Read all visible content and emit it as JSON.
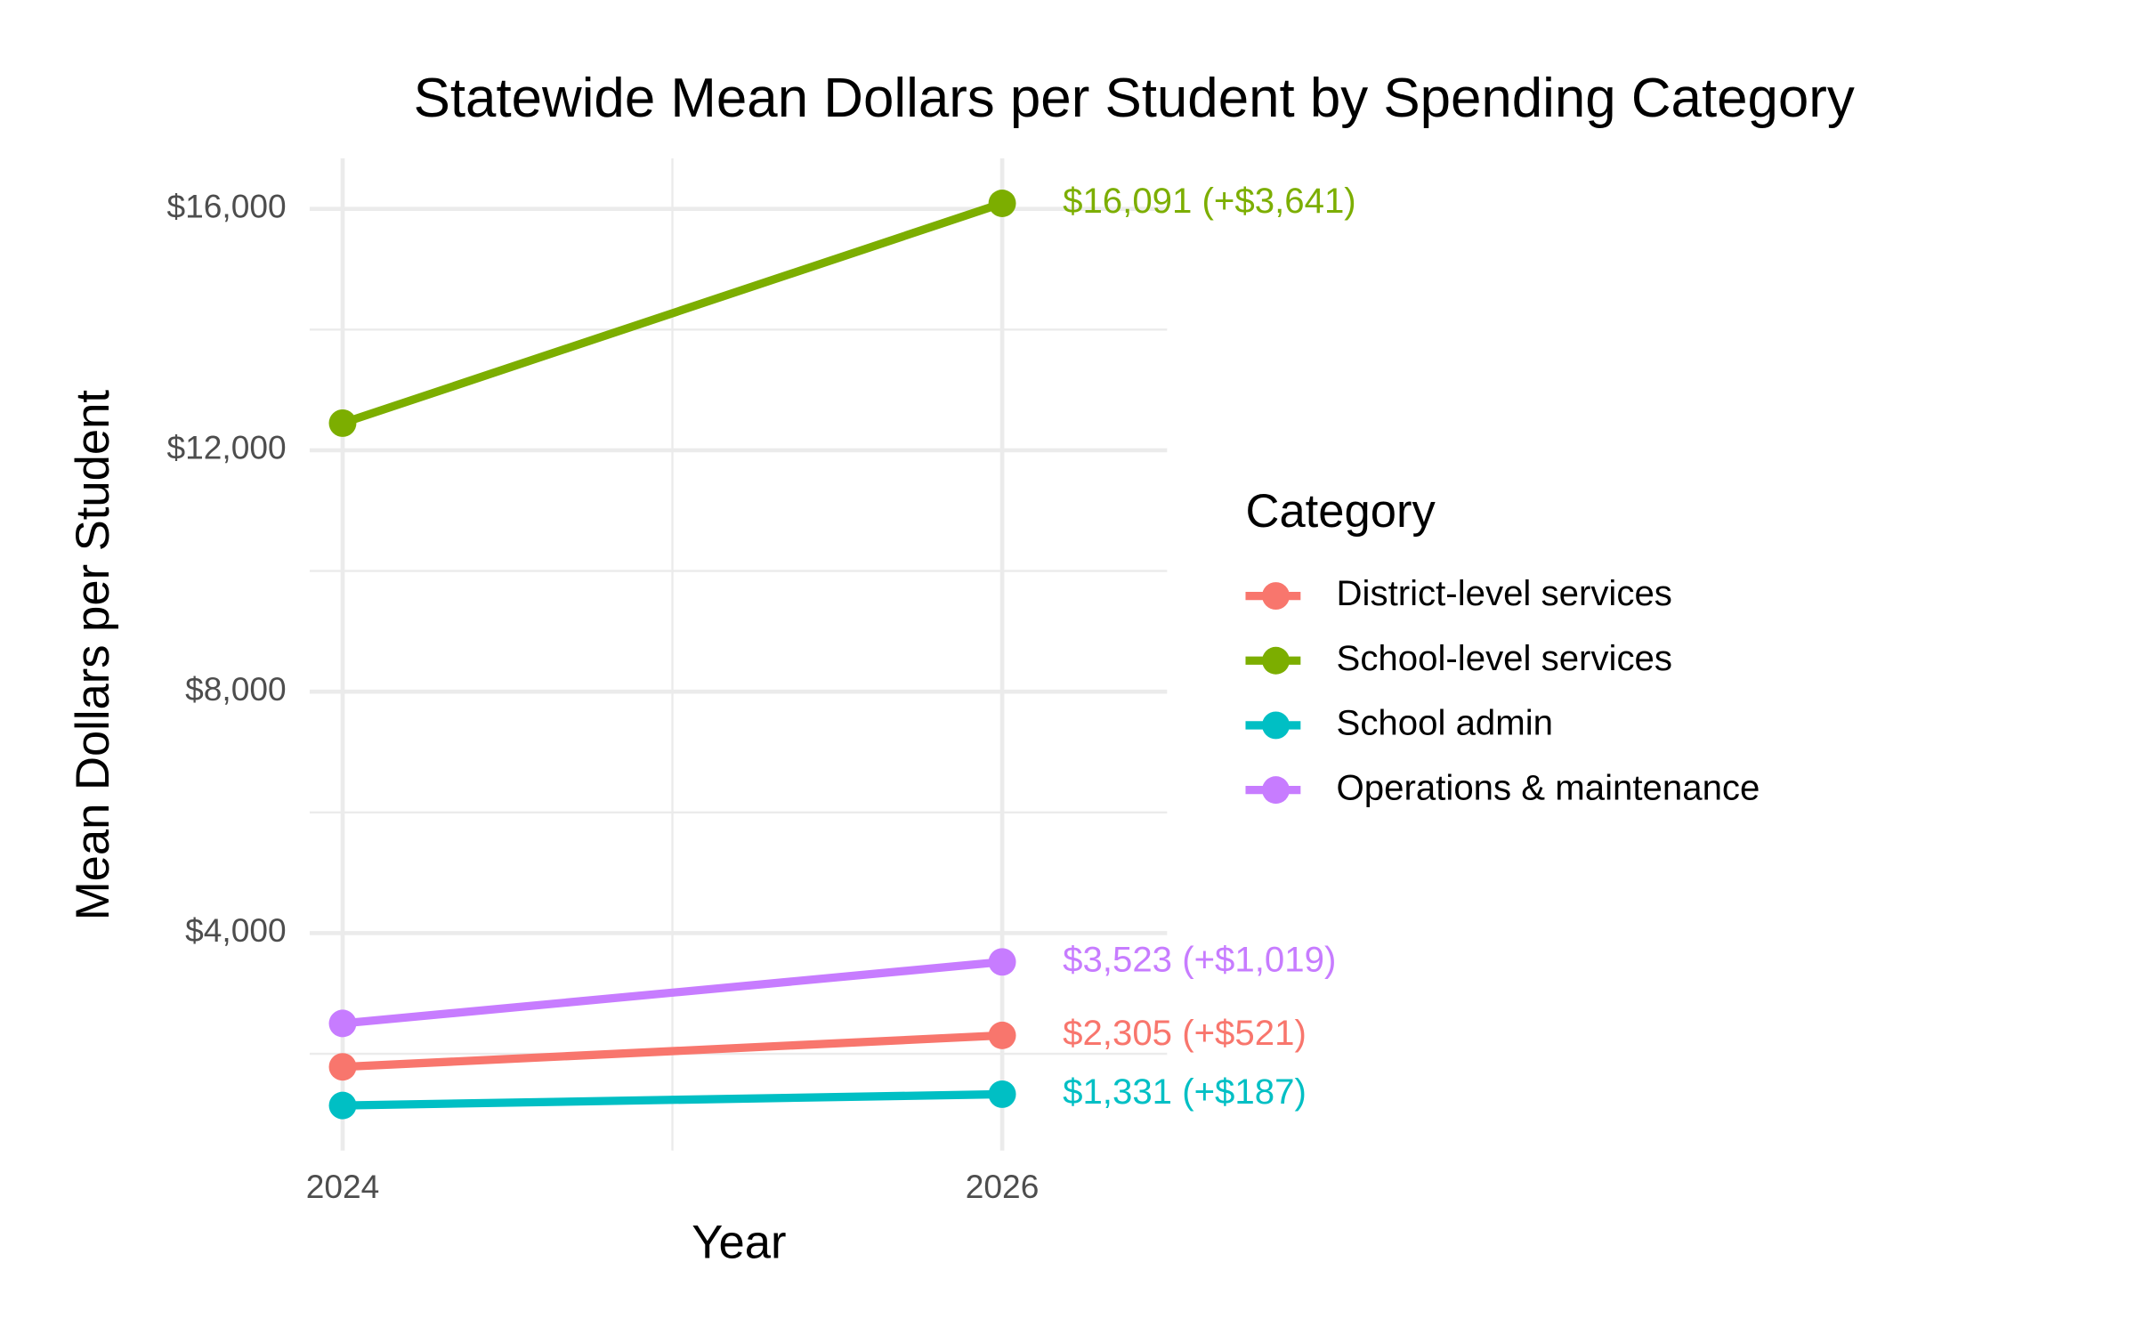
{
  "chart_data": {
    "type": "line",
    "title": "Statewide Mean Dollars per Student by Spending Category",
    "x_label": "Year",
    "y_label": "Mean Dollars per Student",
    "x": [
      2024,
      2026
    ],
    "xlim": [
      2023.9,
      2026.5
    ],
    "xticks": [
      2024,
      2026
    ],
    "ylim": [
      397,
      16838
    ],
    "yticks": [
      {
        "value": 4000,
        "label": "$4,000"
      },
      {
        "value": 8000,
        "label": "$8,000"
      },
      {
        "value": 12000,
        "label": "$12,000"
      },
      {
        "value": 16000,
        "label": "$16,000"
      }
    ],
    "grid": true,
    "legend_title": "Category",
    "legend_position": "right",
    "series": [
      {
        "name": "District-level services",
        "color": "#F8766D",
        "values": [
          1784,
          2305
        ],
        "value_labels": [
          null,
          "$2,305 (+$521)"
        ]
      },
      {
        "name": "School-level services",
        "color": "#7CAE00",
        "values": [
          12450,
          16091
        ],
        "value_labels": [
          null,
          "$16,091 (+$3,641)"
        ]
      },
      {
        "name": "School admin",
        "color": "#00BFC4",
        "values": [
          1144,
          1331
        ],
        "value_labels": [
          null,
          "$1,331 (+$187)"
        ]
      },
      {
        "name": "Operations & maintenance",
        "color": "#C77CFF",
        "values": [
          2504,
          3523
        ],
        "value_labels": [
          null,
          "$3,523 (+$1,019)"
        ]
      }
    ]
  }
}
